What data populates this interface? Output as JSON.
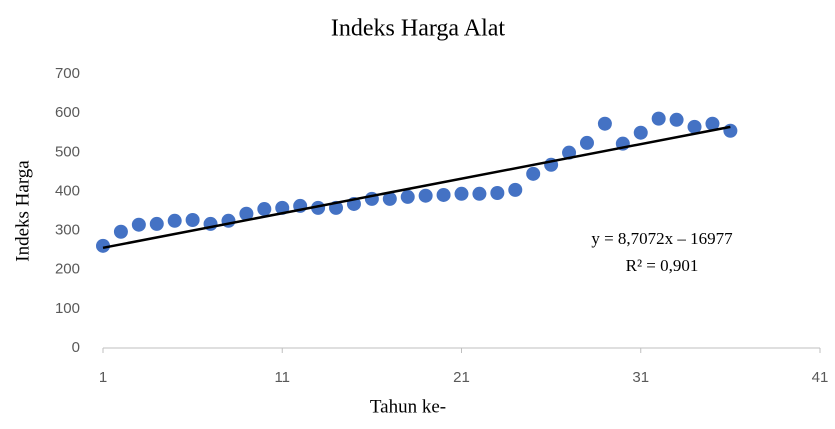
{
  "chart_data": {
    "type": "scatter",
    "title": "Indeks Harga Alat",
    "x_label": "Tahun ke-",
    "y_label": "Indeks Harga",
    "annotations": [
      "y = 8,7072x – 16977",
      "R² = 0,901"
    ],
    "color": "#4472c4",
    "x": [
      1,
      2,
      3,
      4,
      5,
      6,
      7,
      8,
      9,
      10,
      11,
      12,
      13,
      14,
      15,
      16,
      17,
      18,
      19,
      20,
      21,
      22,
      23,
      24,
      25,
      26,
      27,
      28,
      29,
      30,
      31,
      32,
      33,
      34,
      35,
      36
    ],
    "values": [
      261,
      297,
      315,
      317,
      325,
      327,
      317,
      325,
      343,
      355,
      358,
      363,
      358,
      358,
      368,
      381,
      381,
      386,
      389,
      391,
      394,
      394,
      396,
      404,
      445,
      468,
      499,
      524,
      573,
      522,
      550,
      586,
      583,
      565,
      573,
      555
    ],
    "trendline": {
      "color": "#000000",
      "x": [
        1,
        36
      ],
      "values": [
        256,
        565
      ]
    },
    "xlim": [
      1,
      41
    ],
    "xticks": [
      1,
      11,
      21,
      31,
      41
    ],
    "ylim": [
      0,
      700
    ],
    "yticks": [
      0,
      100,
      200,
      300,
      400,
      500,
      600,
      700
    ],
    "grid": false
  }
}
